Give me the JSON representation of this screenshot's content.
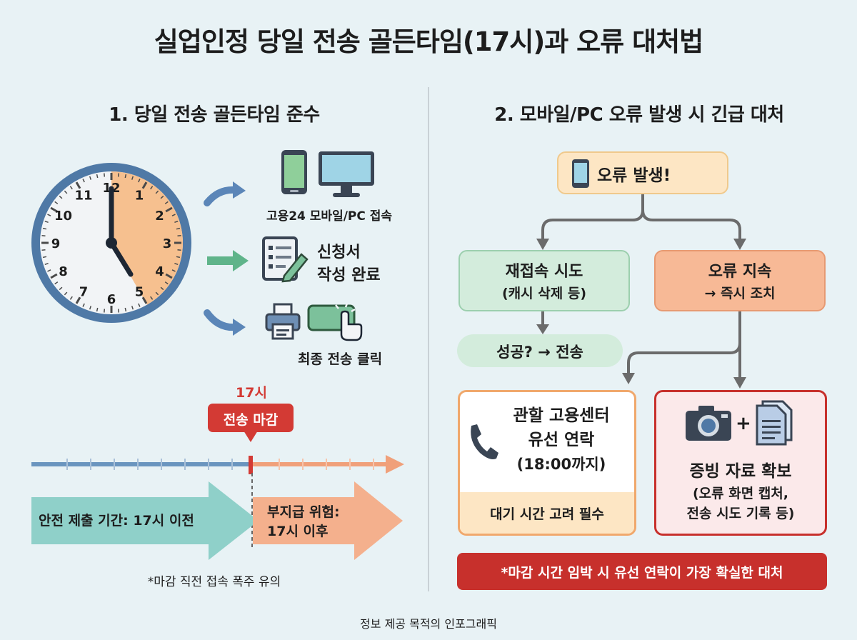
{
  "title": "실업인정 당일 전송 골든타임(17시)과 오류 대처법",
  "left": {
    "heading": "1. 당일 전송 골든타임 준수",
    "clock": {
      "numbers": [
        "12",
        "1",
        "2",
        "3",
        "4",
        "5",
        "6",
        "7",
        "8",
        "9",
        "10",
        "11"
      ]
    },
    "steps": {
      "access": "고용24 모바일/PC 접속",
      "form_line1": "신청서",
      "form_line2": "작성 완료",
      "submit": "최종 전송 클릭"
    },
    "timeline": {
      "time_label": "17시",
      "deadline_badge": "전송 마감",
      "safe_label": "안전 제출 기간: 17시 이전",
      "risk_line1": "부지급 위험:",
      "risk_line2": "17시 이후",
      "note": "*마감 직전 접속 폭주 유의"
    },
    "colors": {
      "safe": "#8fd0c9",
      "risk": "#f4b08d",
      "deadline": "#d33a34",
      "clock_fill": "#f6c08f"
    }
  },
  "right": {
    "heading": "2. 모바일/PC 오류 발생 시 긴급 대처",
    "error_box": "오류 발생!",
    "retry_line1": "재접속 시도",
    "retry_line2": "(캐시 삭제 등)",
    "persist_line1": "오류 지속",
    "persist_line2": "→ 즉시 조치",
    "success": "성공? → 전송",
    "call": {
      "line1": "관할 고용센터",
      "line2": "유선 연락",
      "line3": "(18:00까지)",
      "footer": "대기 시간 고려 필수"
    },
    "evidence": {
      "plus": "+",
      "line1": "증빙 자료 확보",
      "line2": "(오류 화면 캡처,",
      "line3": "전송 시도 기록 등)"
    },
    "bottom_note": "*마감 시간 임박 시 유선 연락이 가장 확실한 대처",
    "colors": {
      "warning": "#fde6c4",
      "green": "#d3ecdc",
      "orange": "#f7b996",
      "alert": "#c7302c"
    }
  },
  "footer": "정보 제공 목적의 인포그래픽"
}
